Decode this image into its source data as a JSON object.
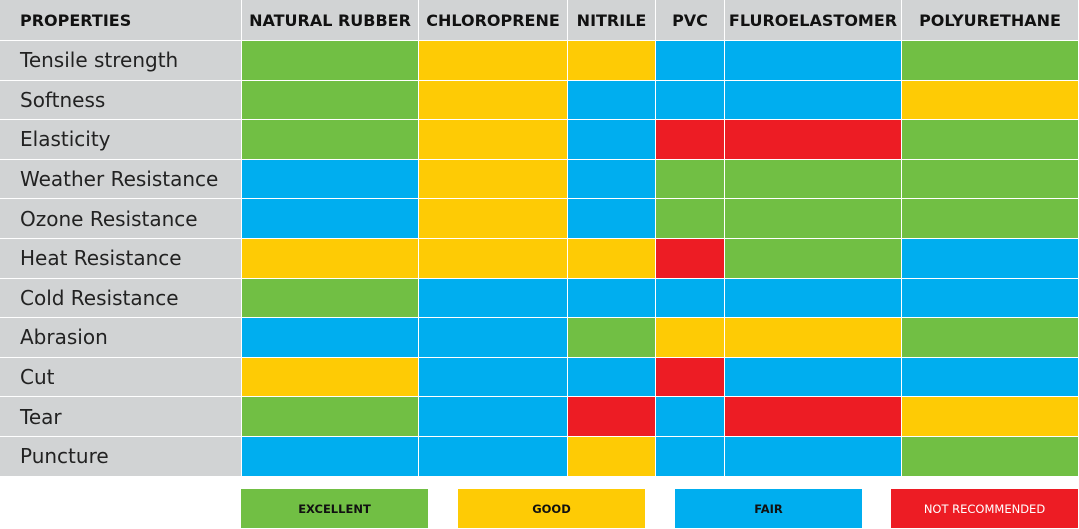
{
  "colors": {
    "EXCELLENT": "#71bf44",
    "GOOD": "#fecb05",
    "FAIR": "#00aeef",
    "NOT RECOMMENDED": "#ed1c24",
    "header_bg": "#d1d3d4"
  },
  "chart_data": {
    "type": "table",
    "corner_label": "PROPERTIES",
    "columns": [
      "NATURAL RUBBER",
      "CHLOROPRENE",
      "NITRILE",
      "PVC",
      "FLUROELASTOMER",
      "POLYURETHANE"
    ],
    "rows": [
      {
        "label": "Tensile strength",
        "ratings": [
          "EXCELLENT",
          "GOOD",
          "GOOD",
          "FAIR",
          "FAIR",
          "EXCELLENT"
        ]
      },
      {
        "label": "Softness",
        "ratings": [
          "EXCELLENT",
          "GOOD",
          "FAIR",
          "FAIR",
          "FAIR",
          "GOOD"
        ]
      },
      {
        "label": "Elasticity",
        "ratings": [
          "EXCELLENT",
          "GOOD",
          "FAIR",
          "NOT RECOMMENDED",
          "NOT RECOMMENDED",
          "EXCELLENT"
        ]
      },
      {
        "label": "Weather Resistance",
        "ratings": [
          "FAIR",
          "GOOD",
          "FAIR",
          "EXCELLENT",
          "EXCELLENT",
          "EXCELLENT"
        ]
      },
      {
        "label": "Ozone Resistance",
        "ratings": [
          "FAIR",
          "GOOD",
          "FAIR",
          "EXCELLENT",
          "EXCELLENT",
          "EXCELLENT"
        ]
      },
      {
        "label": "Heat Resistance",
        "ratings": [
          "GOOD",
          "GOOD",
          "GOOD",
          "NOT RECOMMENDED",
          "EXCELLENT",
          "FAIR"
        ]
      },
      {
        "label": "Cold Resistance",
        "ratings": [
          "EXCELLENT",
          "FAIR",
          "FAIR",
          "FAIR",
          "FAIR",
          "FAIR"
        ]
      },
      {
        "label": "Abrasion",
        "ratings": [
          "FAIR",
          "FAIR",
          "EXCELLENT",
          "GOOD",
          "GOOD",
          "EXCELLENT"
        ]
      },
      {
        "label": "Cut",
        "ratings": [
          "GOOD",
          "FAIR",
          "FAIR",
          "NOT RECOMMENDED",
          "FAIR",
          "FAIR"
        ]
      },
      {
        "label": "Tear",
        "ratings": [
          "EXCELLENT",
          "FAIR",
          "NOT RECOMMENDED",
          "FAIR",
          "NOT RECOMMENDED",
          "GOOD"
        ]
      },
      {
        "label": "Puncture",
        "ratings": [
          "FAIR",
          "FAIR",
          "GOOD",
          "FAIR",
          "FAIR",
          "EXCELLENT"
        ]
      }
    ],
    "legend": [
      "EXCELLENT",
      "GOOD",
      "FAIR",
      "NOT RECOMMENDED"
    ]
  }
}
